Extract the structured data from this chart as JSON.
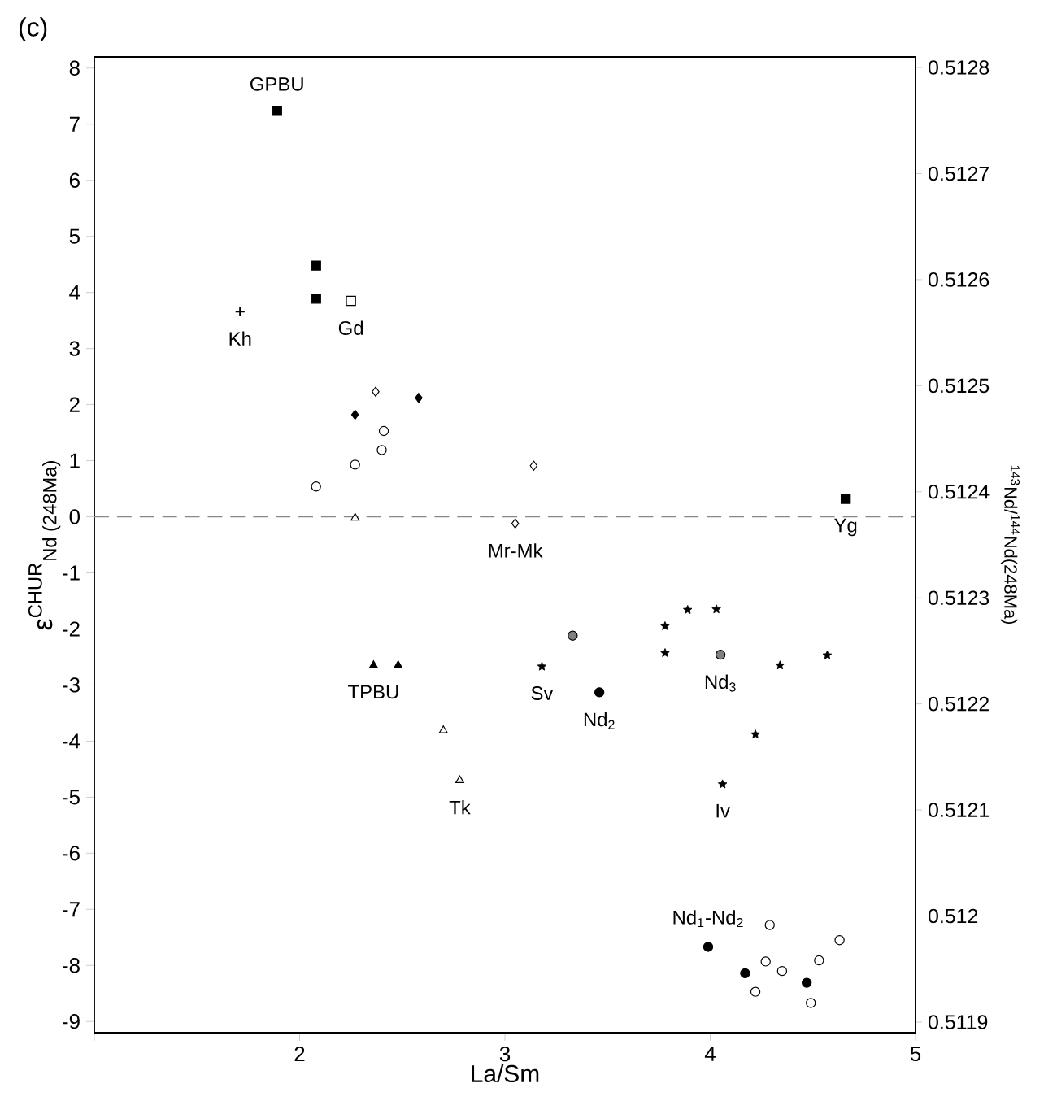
{
  "chart_data": {
    "type": "scatter",
    "title": "(c)",
    "xlabel": "La/Sm",
    "ylabel": "ε$^{CHUR}$$_{Nd (248Ma)}$",
    "y2label": "$^{143}$Nd/$^{144}$Nd(248Ma)",
    "xlim": [
      1,
      5
    ],
    "ylim": [
      -9.2,
      8.2
    ],
    "y2lim": [
      0.51189,
      0.51281
    ],
    "xticks": [
      {
        "value": 1,
        "label": null
      },
      2,
      3,
      4,
      5
    ],
    "yticks": [
      -9,
      -8,
      -7,
      -6,
      -5,
      -4,
      -3,
      -2,
      -1,
      0,
      1,
      2,
      3,
      4,
      5,
      6,
      7,
      8
    ],
    "y2ticks": [
      0.5119,
      0.512,
      0.5121,
      0.5122,
      0.5123,
      0.5124,
      0.5125,
      0.5126,
      0.5127,
      0.5128
    ],
    "ref_lines": [
      {
        "axis": "y",
        "value": 0,
        "color": "#888888",
        "line_style": "dashed"
      }
    ],
    "series": [
      {
        "name": "GPBU",
        "marker": "square",
        "color": "#000000",
        "x": [
          1.89,
          2.08,
          2.08
        ],
        "values": [
          7.24,
          4.48,
          3.89
        ]
      },
      {
        "name": "Gd",
        "marker": "square",
        "color": "#ffffff",
        "x": [
          2.25
        ],
        "values": [
          3.85
        ]
      },
      {
        "name": "Kh",
        "marker": "cross",
        "color": "#000000",
        "x": [
          1.71
        ],
        "values": [
          3.66
        ]
      },
      {
        "name": "Mr-Mk",
        "marker": "diamond",
        "color": "#ffffff",
        "x": [
          2.37,
          3.14,
          3.05
        ],
        "values": [
          2.23,
          0.91,
          -0.12
        ]
      },
      {
        "marker": "diamond",
        "color": "#000000",
        "x": [
          2.27,
          2.58
        ],
        "values": [
          1.82,
          2.12
        ]
      },
      {
        "marker": "circle",
        "color": "#ffffff",
        "x": [
          2.08,
          2.27,
          2.4,
          2.41
        ],
        "values": [
          0.54,
          0.93,
          1.19,
          1.53
        ]
      },
      {
        "name": "Yg",
        "marker": "square",
        "color": "#000000",
        "x": [
          4.66
        ],
        "values": [
          0.32
        ]
      },
      {
        "name": "Sv",
        "marker": "star",
        "color": "#000000",
        "x": [
          3.89,
          4.03,
          3.78,
          3.78,
          3.18,
          4.34
        ],
        "values": [
          -1.66,
          -1.65,
          -1.95,
          -2.43,
          -2.67,
          -2.65
        ]
      },
      {
        "name": "Nd$_{3}$",
        "marker": "circle",
        "color": "#808080",
        "x": [
          3.33,
          4.05
        ],
        "values": [
          -2.12,
          -2.46
        ]
      },
      {
        "name": "Nd$_{2}$",
        "marker": "circle",
        "color": "#000000",
        "x": [
          3.46
        ],
        "values": [
          -3.13
        ]
      },
      {
        "name": "Iv",
        "marker": "star",
        "color": "#000000",
        "x": [
          4.57,
          4.22,
          4.06
        ],
        "values": [
          -2.47,
          -3.88,
          -4.77
        ]
      },
      {
        "name": "TPBU",
        "marker": "triangle",
        "color": "#000000",
        "x": [
          2.36,
          2.48
        ],
        "values": [
          -2.65,
          -2.65
        ]
      },
      {
        "name": "Tk",
        "marker": "triangle",
        "color": "#ffffff",
        "x": [
          2.27,
          2.7,
          2.78
        ],
        "values": [
          -0.02,
          -3.81,
          -4.7
        ]
      },
      {
        "name": "Nd$_{1}$-Nd$_{2}$",
        "marker": "circle",
        "color": "#000000",
        "x": [
          3.99,
          4.17,
          4.47
        ],
        "values": [
          -7.67,
          -8.14,
          -8.31
        ]
      },
      {
        "marker": "circle",
        "color": "#ffffff",
        "x": [
          4.29,
          4.63,
          4.27,
          4.35,
          4.53,
          4.22,
          4.49
        ],
        "values": [
          -7.28,
          -7.55,
          -7.93,
          -8.1,
          -7.91,
          -8.47,
          -8.67
        ]
      }
    ]
  }
}
